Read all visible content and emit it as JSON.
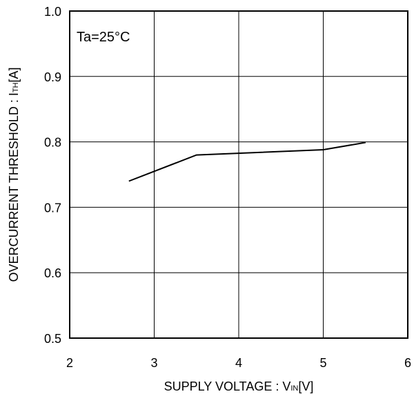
{
  "chart_data": {
    "type": "line",
    "xlabel": "SUPPLY VOLTAGE : V",
    "xlabel_sub": "IN",
    "xlabel_unit": "[V]",
    "ylabel": "OVERCURRENT THRESHOLD : I",
    "ylabel_sub": "TH",
    "ylabel_unit": "[A]",
    "annotation": "Ta=25°C",
    "xlim": [
      2,
      6
    ],
    "ylim": [
      0.5,
      1.0
    ],
    "x_ticks": [
      2,
      3,
      4,
      5,
      6
    ],
    "y_ticks": [
      0.5,
      0.6,
      0.7,
      0.8,
      0.9,
      1.0
    ],
    "x_tick_labels": [
      "2",
      "3",
      "4",
      "5",
      "6"
    ],
    "y_tick_labels": [
      "0.5",
      "0.6",
      "0.7",
      "0.8",
      "0.9",
      "1.0"
    ],
    "grid": true,
    "series": [
      {
        "x": [
          2.7,
          3.5,
          5.0,
          5.5
        ],
        "y": [
          0.74,
          0.78,
          0.788,
          0.799
        ]
      }
    ],
    "colors": {
      "line": "#000000",
      "grid": "#000000",
      "background": "#ffffff"
    }
  }
}
